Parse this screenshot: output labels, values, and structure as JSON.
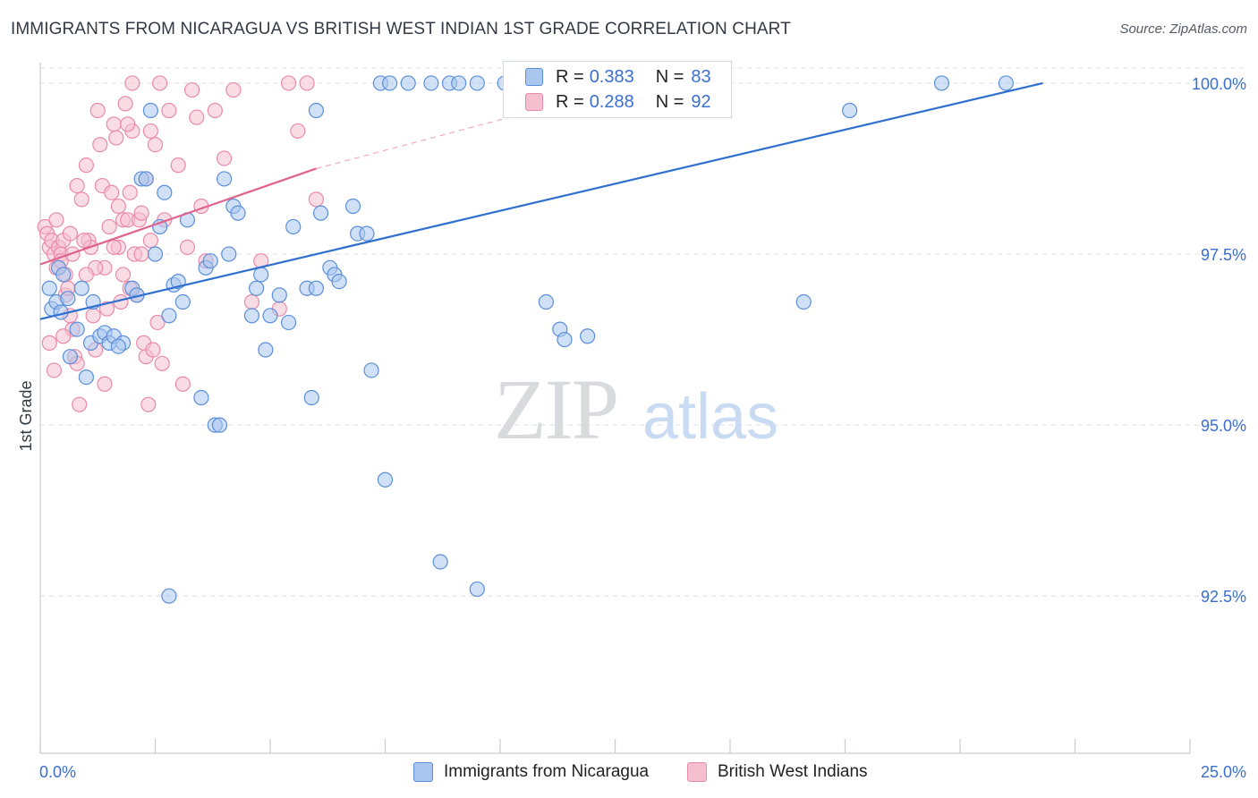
{
  "header": {
    "title": "IMMIGRANTS FROM NICARAGUA VS BRITISH WEST INDIAN 1ST GRADE CORRELATION CHART",
    "source": "Source: ZipAtlas.com"
  },
  "watermark": {
    "zip": "ZIP",
    "atlas": "atlas"
  },
  "legend": {
    "r_label": "R =",
    "n_label": "N =",
    "series1": {
      "r": "0.383",
      "n": "83"
    },
    "series2": {
      "r": "0.288",
      "n": "92"
    }
  },
  "colors": {
    "blue_fill": "#a9c6ee",
    "blue_stroke": "#5b8fd9",
    "blue_line": "#2f6fcf",
    "pink_fill": "#f6bfd0",
    "pink_stroke": "#e98aab",
    "pink_line": "#e0628e",
    "axis_text": "#3a6fd0",
    "grid": "#dadde2"
  },
  "chart_data": {
    "type": "scatter",
    "title": "IMMIGRANTS FROM NICARAGUA VS BRITISH WEST INDIAN 1ST GRADE CORRELATION CHART",
    "xlabel": "",
    "ylabel": "1st Grade",
    "xlim": [
      0,
      25
    ],
    "ylim": [
      90.2,
      100.3
    ],
    "x_tick_labels": [
      "0.0%",
      "25.0%"
    ],
    "y_ticks": [
      92.5,
      95.0,
      97.5,
      100.0
    ],
    "y_tick_labels": [
      "92.5%",
      "95.0%",
      "97.5%",
      "100.0%"
    ],
    "series": [
      {
        "name": "Immigrants from Nicaragua",
        "trend": {
          "x": [
            0.0,
            21.8
          ],
          "y": [
            96.55,
            100.0
          ]
        },
        "points": [
          [
            0.25,
            96.7
          ],
          [
            0.35,
            96.8
          ],
          [
            0.4,
            97.3
          ],
          [
            0.5,
            97.2
          ],
          [
            0.45,
            96.65
          ],
          [
            0.6,
            96.85
          ],
          [
            0.8,
            96.4
          ],
          [
            0.9,
            97.0
          ],
          [
            1.1,
            96.2
          ],
          [
            1.15,
            96.8
          ],
          [
            1.3,
            96.3
          ],
          [
            1.4,
            96.35
          ],
          [
            1.5,
            96.2
          ],
          [
            1.6,
            96.3
          ],
          [
            1.8,
            96.2
          ],
          [
            2.0,
            97.0
          ],
          [
            2.1,
            96.9
          ],
          [
            2.2,
            98.6
          ],
          [
            2.3,
            98.6
          ],
          [
            2.5,
            97.5
          ],
          [
            2.6,
            97.9
          ],
          [
            2.7,
            98.4
          ],
          [
            2.8,
            96.6
          ],
          [
            2.9,
            97.05
          ],
          [
            3.0,
            97.1
          ],
          [
            3.1,
            96.8
          ],
          [
            3.2,
            98.0
          ],
          [
            3.5,
            95.4
          ],
          [
            3.6,
            97.3
          ],
          [
            3.7,
            97.4
          ],
          [
            3.8,
            95.0
          ],
          [
            3.9,
            95.0
          ],
          [
            4.0,
            98.6
          ],
          [
            4.1,
            97.5
          ],
          [
            4.2,
            98.2
          ],
          [
            4.3,
            98.1
          ],
          [
            4.6,
            96.6
          ],
          [
            4.7,
            97.0
          ],
          [
            4.8,
            97.2
          ],
          [
            4.9,
            96.1
          ],
          [
            5.0,
            96.6
          ],
          [
            5.2,
            96.9
          ],
          [
            5.4,
            96.5
          ],
          [
            5.5,
            97.9
          ],
          [
            5.8,
            97.0
          ],
          [
            5.9,
            95.4
          ],
          [
            6.0,
            97.0
          ],
          [
            6.1,
            98.1
          ],
          [
            6.3,
            97.3
          ],
          [
            6.4,
            97.2
          ],
          [
            6.5,
            97.1
          ],
          [
            6.8,
            98.2
          ],
          [
            6.9,
            97.8
          ],
          [
            7.1,
            97.8
          ],
          [
            7.2,
            95.8
          ],
          [
            7.4,
            100.0
          ],
          [
            7.6,
            100.0
          ],
          [
            1.0,
            95.7
          ],
          [
            0.65,
            96.0
          ],
          [
            1.7,
            96.15
          ],
          [
            2.4,
            99.6
          ],
          [
            8.0,
            100.0
          ],
          [
            8.5,
            100.0
          ],
          [
            8.9,
            100.0
          ],
          [
            9.1,
            100.0
          ],
          [
            9.5,
            100.0
          ],
          [
            10.1,
            100.0
          ],
          [
            11.0,
            96.8
          ],
          [
            11.3,
            96.4
          ],
          [
            11.4,
            96.25
          ],
          [
            11.9,
            96.3
          ],
          [
            12.5,
            99.8
          ],
          [
            13.0,
            100.0
          ],
          [
            16.6,
            96.8
          ],
          [
            17.6,
            99.6
          ],
          [
            19.6,
            100.0
          ],
          [
            21.0,
            100.0
          ],
          [
            7.5,
            94.2
          ],
          [
            8.7,
            93.0
          ],
          [
            9.5,
            92.6
          ],
          [
            2.8,
            92.5
          ],
          [
            6.0,
            99.6
          ],
          [
            0.2,
            97.0
          ]
        ]
      },
      {
        "name": "British West Indians",
        "trend": {
          "x": [
            0.0,
            6.0
          ],
          "y": [
            97.35,
            98.75
          ]
        },
        "trend_extension": {
          "x": [
            6.0,
            13.0
          ],
          "y": [
            98.75,
            100.0
          ]
        },
        "points": [
          [
            0.1,
            97.9
          ],
          [
            0.15,
            97.8
          ],
          [
            0.2,
            97.6
          ],
          [
            0.25,
            97.7
          ],
          [
            0.3,
            97.5
          ],
          [
            0.35,
            97.3
          ],
          [
            0.4,
            97.6
          ],
          [
            0.45,
            97.5
          ],
          [
            0.5,
            97.7
          ],
          [
            0.55,
            96.9
          ],
          [
            0.6,
            97.0
          ],
          [
            0.65,
            96.6
          ],
          [
            0.7,
            96.4
          ],
          [
            0.75,
            96.0
          ],
          [
            0.8,
            95.9
          ],
          [
            0.85,
            95.3
          ],
          [
            0.9,
            98.3
          ],
          [
            1.0,
            98.8
          ],
          [
            1.05,
            97.7
          ],
          [
            1.1,
            97.6
          ],
          [
            1.15,
            96.6
          ],
          [
            1.2,
            96.1
          ],
          [
            1.25,
            99.6
          ],
          [
            1.3,
            99.1
          ],
          [
            1.35,
            98.5
          ],
          [
            1.4,
            97.3
          ],
          [
            1.45,
            96.7
          ],
          [
            1.5,
            97.9
          ],
          [
            1.55,
            98.4
          ],
          [
            1.6,
            99.4
          ],
          [
            1.65,
            99.2
          ],
          [
            1.7,
            97.6
          ],
          [
            1.75,
            96.8
          ],
          [
            1.8,
            98.0
          ],
          [
            1.85,
            99.7
          ],
          [
            1.9,
            98.0
          ],
          [
            1.95,
            97.0
          ],
          [
            2.0,
            99.3
          ],
          [
            2.05,
            97.5
          ],
          [
            2.1,
            96.9
          ],
          [
            2.15,
            98.0
          ],
          [
            2.2,
            98.1
          ],
          [
            2.25,
            96.2
          ],
          [
            2.3,
            96.0
          ],
          [
            2.35,
            95.3
          ],
          [
            2.4,
            97.7
          ],
          [
            2.5,
            99.1
          ],
          [
            2.55,
            96.5
          ],
          [
            2.6,
            100.0
          ],
          [
            2.7,
            98.0
          ],
          [
            2.8,
            99.6
          ],
          [
            3.0,
            98.8
          ],
          [
            3.1,
            95.6
          ],
          [
            3.2,
            97.6
          ],
          [
            3.3,
            99.9
          ],
          [
            3.4,
            99.5
          ],
          [
            3.5,
            98.2
          ],
          [
            3.6,
            97.4
          ],
          [
            3.8,
            99.6
          ],
          [
            4.0,
            98.9
          ],
          [
            4.2,
            99.9
          ],
          [
            4.6,
            96.8
          ],
          [
            4.8,
            97.4
          ],
          [
            5.2,
            96.7
          ],
          [
            5.4,
            100.0
          ],
          [
            5.6,
            99.3
          ],
          [
            5.8,
            100.0
          ],
          [
            6.0,
            98.3
          ],
          [
            0.2,
            96.2
          ],
          [
            0.3,
            95.8
          ],
          [
            0.5,
            96.3
          ],
          [
            1.4,
            95.6
          ],
          [
            1.9,
            99.4
          ],
          [
            2.4,
            99.3
          ],
          [
            0.35,
            98.0
          ],
          [
            0.45,
            97.4
          ],
          [
            0.55,
            97.2
          ],
          [
            0.65,
            97.8
          ],
          [
            0.7,
            97.5
          ],
          [
            0.95,
            97.7
          ],
          [
            1.2,
            97.3
          ],
          [
            1.6,
            97.6
          ],
          [
            1.7,
            98.2
          ],
          [
            1.8,
            97.2
          ],
          [
            1.95,
            98.4
          ],
          [
            2.0,
            100.0
          ],
          [
            2.2,
            97.5
          ],
          [
            2.3,
            98.6
          ],
          [
            2.45,
            96.1
          ],
          [
            2.65,
            95.9
          ],
          [
            0.8,
            98.5
          ],
          [
            1.0,
            97.2
          ]
        ]
      }
    ]
  },
  "bottom_legend": {
    "series1_label": "Immigrants from Nicaragua",
    "series2_label": "British West Indians"
  }
}
